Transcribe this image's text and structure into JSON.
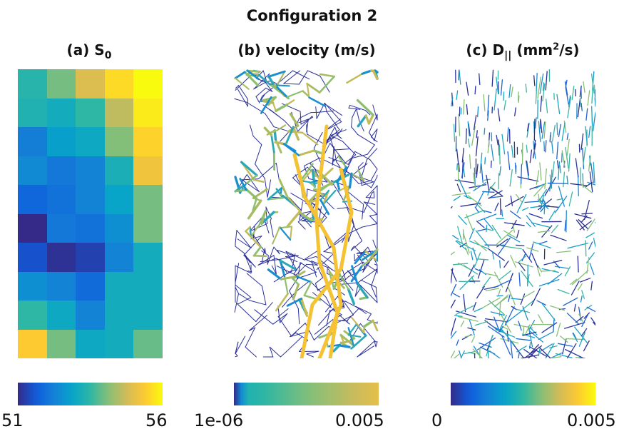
{
  "figure": {
    "title": "Configuration 2"
  },
  "panels": [
    {
      "title_text": "(a) S",
      "title_sub": "0"
    },
    {
      "title_text": "(b) velocity (m/s)"
    },
    {
      "title_text": "(c) D",
      "title_sub": "||",
      "title_text2": " (mm",
      "title_sup": "2",
      "title_text3": "/s)"
    }
  ],
  "colorbars": [
    {
      "min_label": "51",
      "max_label": "56",
      "colormap": "parula"
    },
    {
      "min_label": "1e-06",
      "max_label": "0.005",
      "colormap": "parula-log"
    },
    {
      "min_label": "0",
      "max_label": "0.005",
      "colormap": "parula"
    }
  ],
  "colors": {
    "parula": [
      "#352a87",
      "#0f5cdd",
      "#1481d6",
      "#06a4ca",
      "#2eb7a4",
      "#87bf77",
      "#d1bb59",
      "#fec832",
      "#f9fb0e"
    ]
  },
  "chart_data": [
    {
      "type": "heatmap",
      "title": "(a) S0",
      "rows": 10,
      "cols": 5,
      "value_range": [
        51,
        56
      ],
      "values": [
        [
          53.4,
          54.0,
          54.9,
          55.6,
          56.0
        ],
        [
          53.3,
          53.1,
          53.5,
          54.6,
          55.8
        ],
        [
          52.2,
          52.8,
          53.0,
          54.1,
          55.5
        ],
        [
          52.4,
          52.1,
          52.3,
          53.2,
          55.2
        ],
        [
          51.8,
          52.0,
          52.3,
          52.9,
          54.0
        ],
        [
          51.0,
          52.1,
          52.0,
          52.5,
          54.0
        ],
        [
          51.5,
          51.1,
          51.3,
          52.3,
          53.1
        ],
        [
          52.5,
          52.3,
          51.9,
          53.1,
          53.1
        ],
        [
          53.5,
          53.0,
          52.3,
          53.1,
          53.1
        ],
        [
          55.4,
          54.0,
          53.0,
          53.1,
          53.9
        ]
      ]
    },
    {
      "type": "other",
      "title": "(b) velocity (m/s)",
      "description_kind": "vessel network colored by velocity",
      "value_range": [
        1e-06,
        0.005
      ],
      "scale": "log"
    },
    {
      "type": "other",
      "title": "(c) D|| (mm2/s)",
      "description_kind": "segments colored by parallel diffusivity",
      "value_range": [
        0,
        0.005
      ]
    }
  ]
}
